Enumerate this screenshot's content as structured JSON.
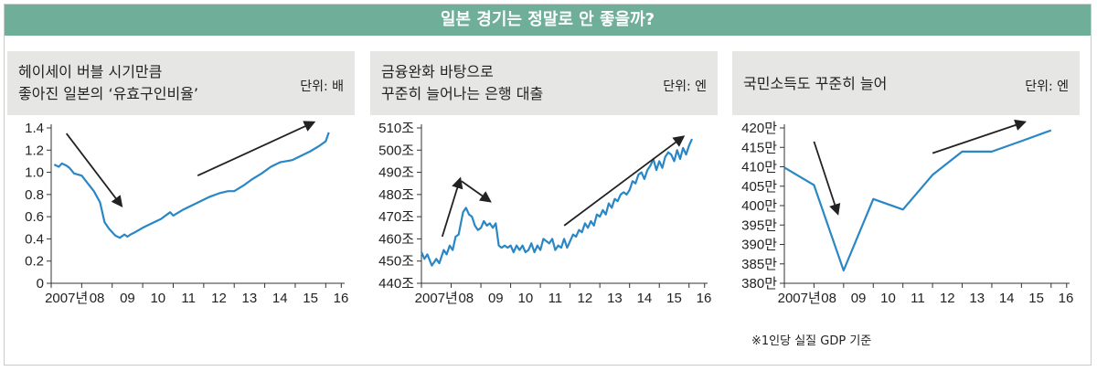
{
  "header": {
    "title": "일본 경기는 정말로 안 좋을까?"
  },
  "footnote": "※1인당 실질 GDP 기준",
  "colors": {
    "banner": "#6fae99",
    "panel_header": "#e6e7e4",
    "line": "#2a87c5",
    "arrow": "#222222"
  },
  "chart_data": [
    {
      "type": "line",
      "title": "헤이세이 버블 시기만큼\n좋아진 일본의 ‘유효구인비율’",
      "unit": "단위: 배",
      "x_tick_labels": [
        "2007년",
        "08",
        "09",
        "10",
        "11",
        "12",
        "13",
        "14",
        "15",
        "16"
      ],
      "y_tick_labels": [
        "0",
        "0.2",
        "0.4",
        "0.6",
        "0.8",
        "1.0",
        "1.2",
        "1.4"
      ],
      "ylim": [
        0,
        1.4
      ],
      "xlim": [
        2007,
        2016.5
      ],
      "grid": false,
      "x": [
        2007.1,
        2007.25,
        2007.35,
        2007.5,
        2007.6,
        2007.75,
        2008.0,
        2008.2,
        2008.4,
        2008.6,
        2008.75,
        2008.9,
        2009.1,
        2009.25,
        2009.4,
        2009.5,
        2009.6,
        2009.75,
        2010.0,
        2010.3,
        2010.6,
        2010.8,
        2010.9,
        2011.0,
        2011.3,
        2011.6,
        2011.9,
        2012.2,
        2012.5,
        2012.8,
        2013.0,
        2013.3,
        2013.6,
        2013.9,
        2014.2,
        2014.5,
        2014.7,
        2014.9,
        2015.2,
        2015.5,
        2015.8,
        2016.0,
        2016.1
      ],
      "y": [
        1.07,
        1.05,
        1.08,
        1.06,
        1.04,
        0.99,
        0.97,
        0.9,
        0.83,
        0.73,
        0.55,
        0.49,
        0.43,
        0.41,
        0.44,
        0.42,
        0.44,
        0.46,
        0.5,
        0.54,
        0.58,
        0.62,
        0.64,
        0.61,
        0.66,
        0.7,
        0.74,
        0.78,
        0.81,
        0.83,
        0.83,
        0.88,
        0.94,
        0.99,
        1.05,
        1.09,
        1.1,
        1.11,
        1.15,
        1.19,
        1.24,
        1.28,
        1.36
      ],
      "arrows": [
        {
          "from": [
            2007.5,
            1.35
          ],
          "to": [
            2009.3,
            0.7
          ]
        },
        {
          "from": [
            2011.8,
            0.97
          ],
          "to": [
            2015.6,
            1.45
          ]
        }
      ]
    },
    {
      "type": "line",
      "title": "금융완화 바탕으로\n꾸준히 늘어나는 은행 대출",
      "unit": "단위: 엔",
      "x_tick_labels": [
        "2007년",
        "08",
        "09",
        "10",
        "11",
        "12",
        "13",
        "14",
        "15",
        "16"
      ],
      "y_tick_labels": [
        "440조",
        "450조",
        "460조",
        "470조",
        "480조",
        "490조",
        "500조",
        "510조"
      ],
      "ylim": [
        440,
        510
      ],
      "xlim": [
        2007,
        2016.5
      ],
      "grid": false,
      "x": [
        2007.0,
        2007.1,
        2007.2,
        2007.35,
        2007.5,
        2007.6,
        2007.75,
        2007.85,
        2007.95,
        2008.05,
        2008.15,
        2008.25,
        2008.4,
        2008.5,
        2008.6,
        2008.7,
        2008.8,
        2008.9,
        2009.0,
        2009.1,
        2009.2,
        2009.3,
        2009.4,
        2009.5,
        2009.6,
        2009.7,
        2009.8,
        2009.9,
        2010.0,
        2010.1,
        2010.2,
        2010.3,
        2010.4,
        2010.5,
        2010.6,
        2010.7,
        2010.8,
        2010.9,
        2011.0,
        2011.1,
        2011.2,
        2011.3,
        2011.4,
        2011.5,
        2011.6,
        2011.7,
        2011.8,
        2011.9,
        2012.0,
        2012.1,
        2012.2,
        2012.3,
        2012.4,
        2012.5,
        2012.6,
        2012.7,
        2012.8,
        2012.9,
        2013.0,
        2013.1,
        2013.2,
        2013.3,
        2013.4,
        2013.5,
        2013.6,
        2013.7,
        2013.8,
        2013.9,
        2014.0,
        2014.1,
        2014.2,
        2014.3,
        2014.4,
        2014.5,
        2014.6,
        2014.7,
        2014.8,
        2014.9,
        2015.0,
        2015.1,
        2015.2,
        2015.3,
        2015.4,
        2015.5,
        2015.6,
        2015.7,
        2015.8,
        2015.9,
        2016.0,
        2016.1
      ],
      "y": [
        454,
        451,
        453,
        448,
        451,
        449,
        455,
        453,
        457,
        455,
        461,
        462,
        472,
        474,
        471,
        470,
        466,
        464,
        465,
        468,
        466,
        467,
        465,
        467,
        457,
        456,
        457,
        456,
        457,
        454,
        457,
        455,
        457,
        454,
        455,
        458,
        454,
        457,
        455,
        460,
        459,
        458,
        460,
        455,
        457,
        456,
        460,
        456,
        459,
        462,
        461,
        464,
        463,
        467,
        465,
        468,
        466,
        471,
        470,
        473,
        471,
        476,
        474,
        478,
        477,
        480,
        481,
        480,
        482,
        486,
        485,
        489,
        490,
        487,
        491,
        493,
        496,
        491,
        495,
        492,
        497,
        499,
        498,
        495,
        500,
        496,
        501,
        498,
        502,
        505
      ],
      "arrows": [
        {
          "from": [
            2007.7,
            461
          ],
          "to": [
            2008.3,
            487
          ]
        },
        {
          "from": [
            2008.35,
            486
          ],
          "to": [
            2009.3,
            477
          ]
        },
        {
          "from": [
            2011.8,
            466
          ],
          "to": [
            2015.8,
            506
          ]
        }
      ]
    },
    {
      "type": "line",
      "title": "국민소득도 꾸준히 늘어",
      "unit": "단위: 엔",
      "x_tick_labels": [
        "2007년",
        "08",
        "09",
        "10",
        "11",
        "12",
        "13",
        "14",
        "15",
        "16"
      ],
      "y_tick_labels": [
        "380만",
        "385만",
        "390만",
        "395만",
        "400만",
        "405만",
        "410만",
        "415만",
        "420만"
      ],
      "ylim": [
        380,
        420
      ],
      "xlim": [
        2007,
        2016.5
      ],
      "grid": false,
      "x": [
        2007,
        2008,
        2009,
        2010,
        2011,
        2012,
        2013,
        2014,
        2015,
        2016
      ],
      "y": [
        409.8,
        405.3,
        383.3,
        401.7,
        399.0,
        407.9,
        413.9,
        413.9,
        416.6,
        419.4
      ],
      "arrows": [
        {
          "from": [
            2008.0,
            416.5
          ],
          "to": [
            2008.8,
            398.0
          ]
        },
        {
          "from": [
            2012.0,
            413.5
          ],
          "to": [
            2015.1,
            421.5
          ]
        }
      ]
    }
  ]
}
